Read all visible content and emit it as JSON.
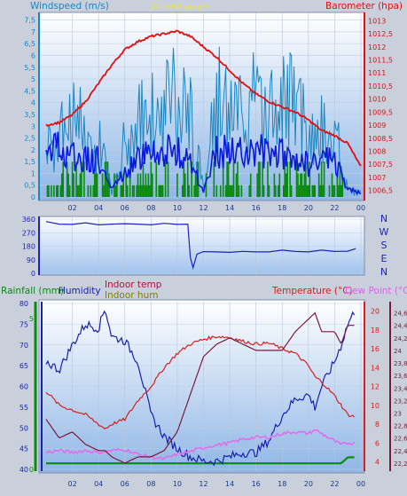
{
  "title_strip": "24 hour graph",
  "colors": {
    "wind_gust": "#1a86c2",
    "wind_avg": "#0a1ad8",
    "barometer": "#e01010",
    "wind_dir": "#1c24b8",
    "rain": "#0a8a10",
    "humidity": "#1820b0",
    "indoor_temp": "#7a1a3a",
    "indoor_hum": "#808000",
    "temperature": "#d42020",
    "dew_point": "#e06ee8",
    "outdoor_label": "#d42020",
    "dew_label": "#e060e8"
  },
  "top_panel": {
    "left_title": "Windspeed (m/s)",
    "right_title": "Barometer (hpa)",
    "left_ticks": [
      "0",
      "0,5",
      "1",
      "1,5",
      "2",
      "2,5",
      "3",
      "3,5",
      "4",
      "4,5",
      "5",
      "5,5",
      "6",
      "6,5",
      "7",
      "7,5"
    ],
    "right_ticks": [
      "1006,5",
      "1007",
      "1007,5",
      "1008",
      "1008,5",
      "1009",
      "1009,5",
      "1010",
      "1010,5",
      "1011",
      "1011,5",
      "1012",
      "1012,5",
      "1013"
    ]
  },
  "mid_panel": {
    "left_ticks": [
      "0",
      "90",
      "180",
      "270",
      "360"
    ],
    "compass": [
      "N",
      "W",
      "S",
      "E",
      "N"
    ]
  },
  "bottom_panel": {
    "rain_title": "Rainfall (mm)",
    "hum_title": "Humidity",
    "indoor_temp_title": "Indoor temp",
    "indoor_hum_title": "Indoor hum",
    "temp_title": "Temperature (°C)",
    "dew_title": "Dew Point (°C)",
    "rain_ticks": [
      "0",
      "5"
    ],
    "hum_ticks": [
      "40",
      "45",
      "50",
      "55",
      "60",
      "65",
      "70",
      "75",
      "80"
    ],
    "temp_ticks": [
      "4",
      "6",
      "8",
      "10",
      "12",
      "14",
      "16",
      "18",
      "20"
    ],
    "indoor_ticks": [
      "22,2",
      "22,4",
      "22,6",
      "22,8",
      "23",
      "23,2",
      "23,4",
      "23,6",
      "23,8",
      "24",
      "24,2",
      "24,4",
      "24,6"
    ]
  },
  "x_labels": [
    "02",
    "04",
    "06",
    "08",
    "10",
    "12",
    "14",
    "16",
    "18",
    "20",
    "22",
    "00"
  ],
  "chart_data": [
    {
      "type": "line",
      "title": "",
      "xlabel": "",
      "ylabel": "Windspeed (m/s)",
      "ylim": [
        0,
        7.75
      ],
      "y2label": "Barometer (hpa)",
      "y2lim": [
        1006.25,
        1013.25
      ],
      "x_hours": [
        0,
        1,
        2,
        3,
        4,
        5,
        6,
        7,
        8,
        9,
        10,
        11,
        12,
        13,
        14,
        15,
        16,
        17,
        18,
        19,
        20,
        21,
        22,
        23,
        24
      ],
      "series": [
        {
          "name": "Windspeed (m/s)",
          "role": "gust",
          "values": [
            2.2,
            2.8,
            3.6,
            3.0,
            2.7,
            0.2,
            3.0,
            3.4,
            3.8,
            4.4,
            4.6,
            4.2,
            0.3,
            4.5,
            4.0,
            4.3,
            4.6,
            4.2,
            4.8,
            4.2,
            3.6,
            3.0,
            3.1,
            0.3,
            0.2
          ]
        },
        {
          "name": "avg",
          "role": "avg",
          "values": [
            1.9,
            2.0,
            1.8,
            1.7,
            1.6,
            0.3,
            1.0,
            1.6,
            1.8,
            1.9,
            1.9,
            1.6,
            0.2,
            2.0,
            1.9,
            1.8,
            2.0,
            1.8,
            1.8,
            1.6,
            1.4,
            1.7,
            1.5,
            0.3,
            0.2
          ]
        },
        {
          "name": "Barometer (hpa)",
          "role": "baro",
          "axis": "right",
          "values": [
            1009.0,
            1009.1,
            1009.4,
            1009.9,
            1010.6,
            1011.3,
            1011.9,
            1012.2,
            1012.4,
            1012.5,
            1012.6,
            1012.4,
            1012.0,
            1011.6,
            1011.1,
            1010.6,
            1010.2,
            1009.9,
            1009.7,
            1009.5,
            1009.2,
            1008.8,
            1008.6,
            1008.3,
            1007.4
          ]
        }
      ]
    },
    {
      "type": "line",
      "title": "",
      "ylabel": "",
      "ylim": [
        0,
        360
      ],
      "x_hours": [
        0,
        1,
        2,
        3,
        4,
        5,
        6,
        7,
        8,
        9,
        10,
        10.8,
        11,
        11.2,
        11.5,
        12,
        13,
        14,
        15,
        16,
        17,
        18,
        19,
        20,
        21,
        22,
        23,
        23.6
      ],
      "series": [
        {
          "name": "wind direction",
          "values": [
            340,
            330,
            328,
            332,
            325,
            330,
            326,
            330,
            325,
            328,
            328,
            330,
            100,
            40,
            130,
            140,
            145,
            142,
            142,
            145,
            145,
            150,
            148,
            145,
            150,
            148,
            150,
            160
          ]
        }
      ]
    },
    {
      "type": "line",
      "title": "",
      "ylim": [
        40,
        80
      ],
      "x_hours": [
        0,
        1,
        2,
        3,
        4,
        4.5,
        5,
        6,
        7,
        8,
        9,
        10,
        11,
        12,
        13,
        14,
        15,
        16,
        17,
        18,
        19,
        20,
        20.5,
        21,
        22,
        22.5,
        23,
        23.5
      ],
      "series": [
        {
          "name": "Rainfall (mm)",
          "role": "rain",
          "axis": "rain",
          "values": [
            0.2,
            0.2,
            0.2,
            0.2,
            0.2,
            0.2,
            0.2,
            0.2,
            0.2,
            0.2,
            0.2,
            0.2,
            0.2,
            0.2,
            0.2,
            0.2,
            0.2,
            0.2,
            0.2,
            0.2,
            0.2,
            0.2,
            0.2,
            0.2,
            0.2,
            0.2,
            0.4,
            0.4
          ]
        },
        {
          "name": "Humidity",
          "role": "hum",
          "values": [
            66,
            64,
            70,
            75,
            74,
            79,
            72,
            71,
            66,
            53,
            48,
            45,
            43,
            42,
            42,
            43,
            44,
            44,
            47,
            53,
            57,
            58,
            55,
            60,
            66,
            70,
            75,
            78
          ]
        },
        {
          "name": "Temperature (°C)",
          "role": "temp",
          "axis": "temp",
          "values": [
            11.5,
            10.0,
            9.5,
            9.0,
            8.0,
            7.5,
            8.0,
            8.5,
            10.5,
            12.0,
            14.0,
            15.5,
            16.5,
            17.0,
            17.3,
            17.2,
            16.8,
            16.5,
            16.6,
            16.0,
            15.5,
            14.2,
            13.0,
            12.5,
            11.0,
            10.0,
            9.0,
            8.8
          ]
        },
        {
          "name": "Dew Point (°C)",
          "role": "dew",
          "axis": "temp",
          "values": [
            5.0,
            5.2,
            5.0,
            5.2,
            5.0,
            5.1,
            5.2,
            5.3,
            4.8,
            4.5,
            4.3,
            4.8,
            5.1,
            5.5,
            5.8,
            6.0,
            6.4,
            6.6,
            6.6,
            7.0,
            7.2,
            7.0,
            7.4,
            7.0,
            6.2,
            5.8,
            6.0,
            6.0
          ]
        },
        {
          "name": "Indoor temp",
          "role": "indoor",
          "axis": "indoor",
          "values": [
            22.9,
            22.6,
            22.7,
            22.5,
            22.4,
            22.4,
            22.3,
            22.2,
            22.3,
            22.3,
            22.4,
            22.7,
            23.3,
            23.9,
            24.1,
            24.2,
            24.1,
            24.0,
            24.0,
            24.0,
            24.3,
            24.5,
            24.6,
            24.3,
            24.3,
            24.1,
            24.4,
            24.4
          ]
        }
      ]
    }
  ]
}
